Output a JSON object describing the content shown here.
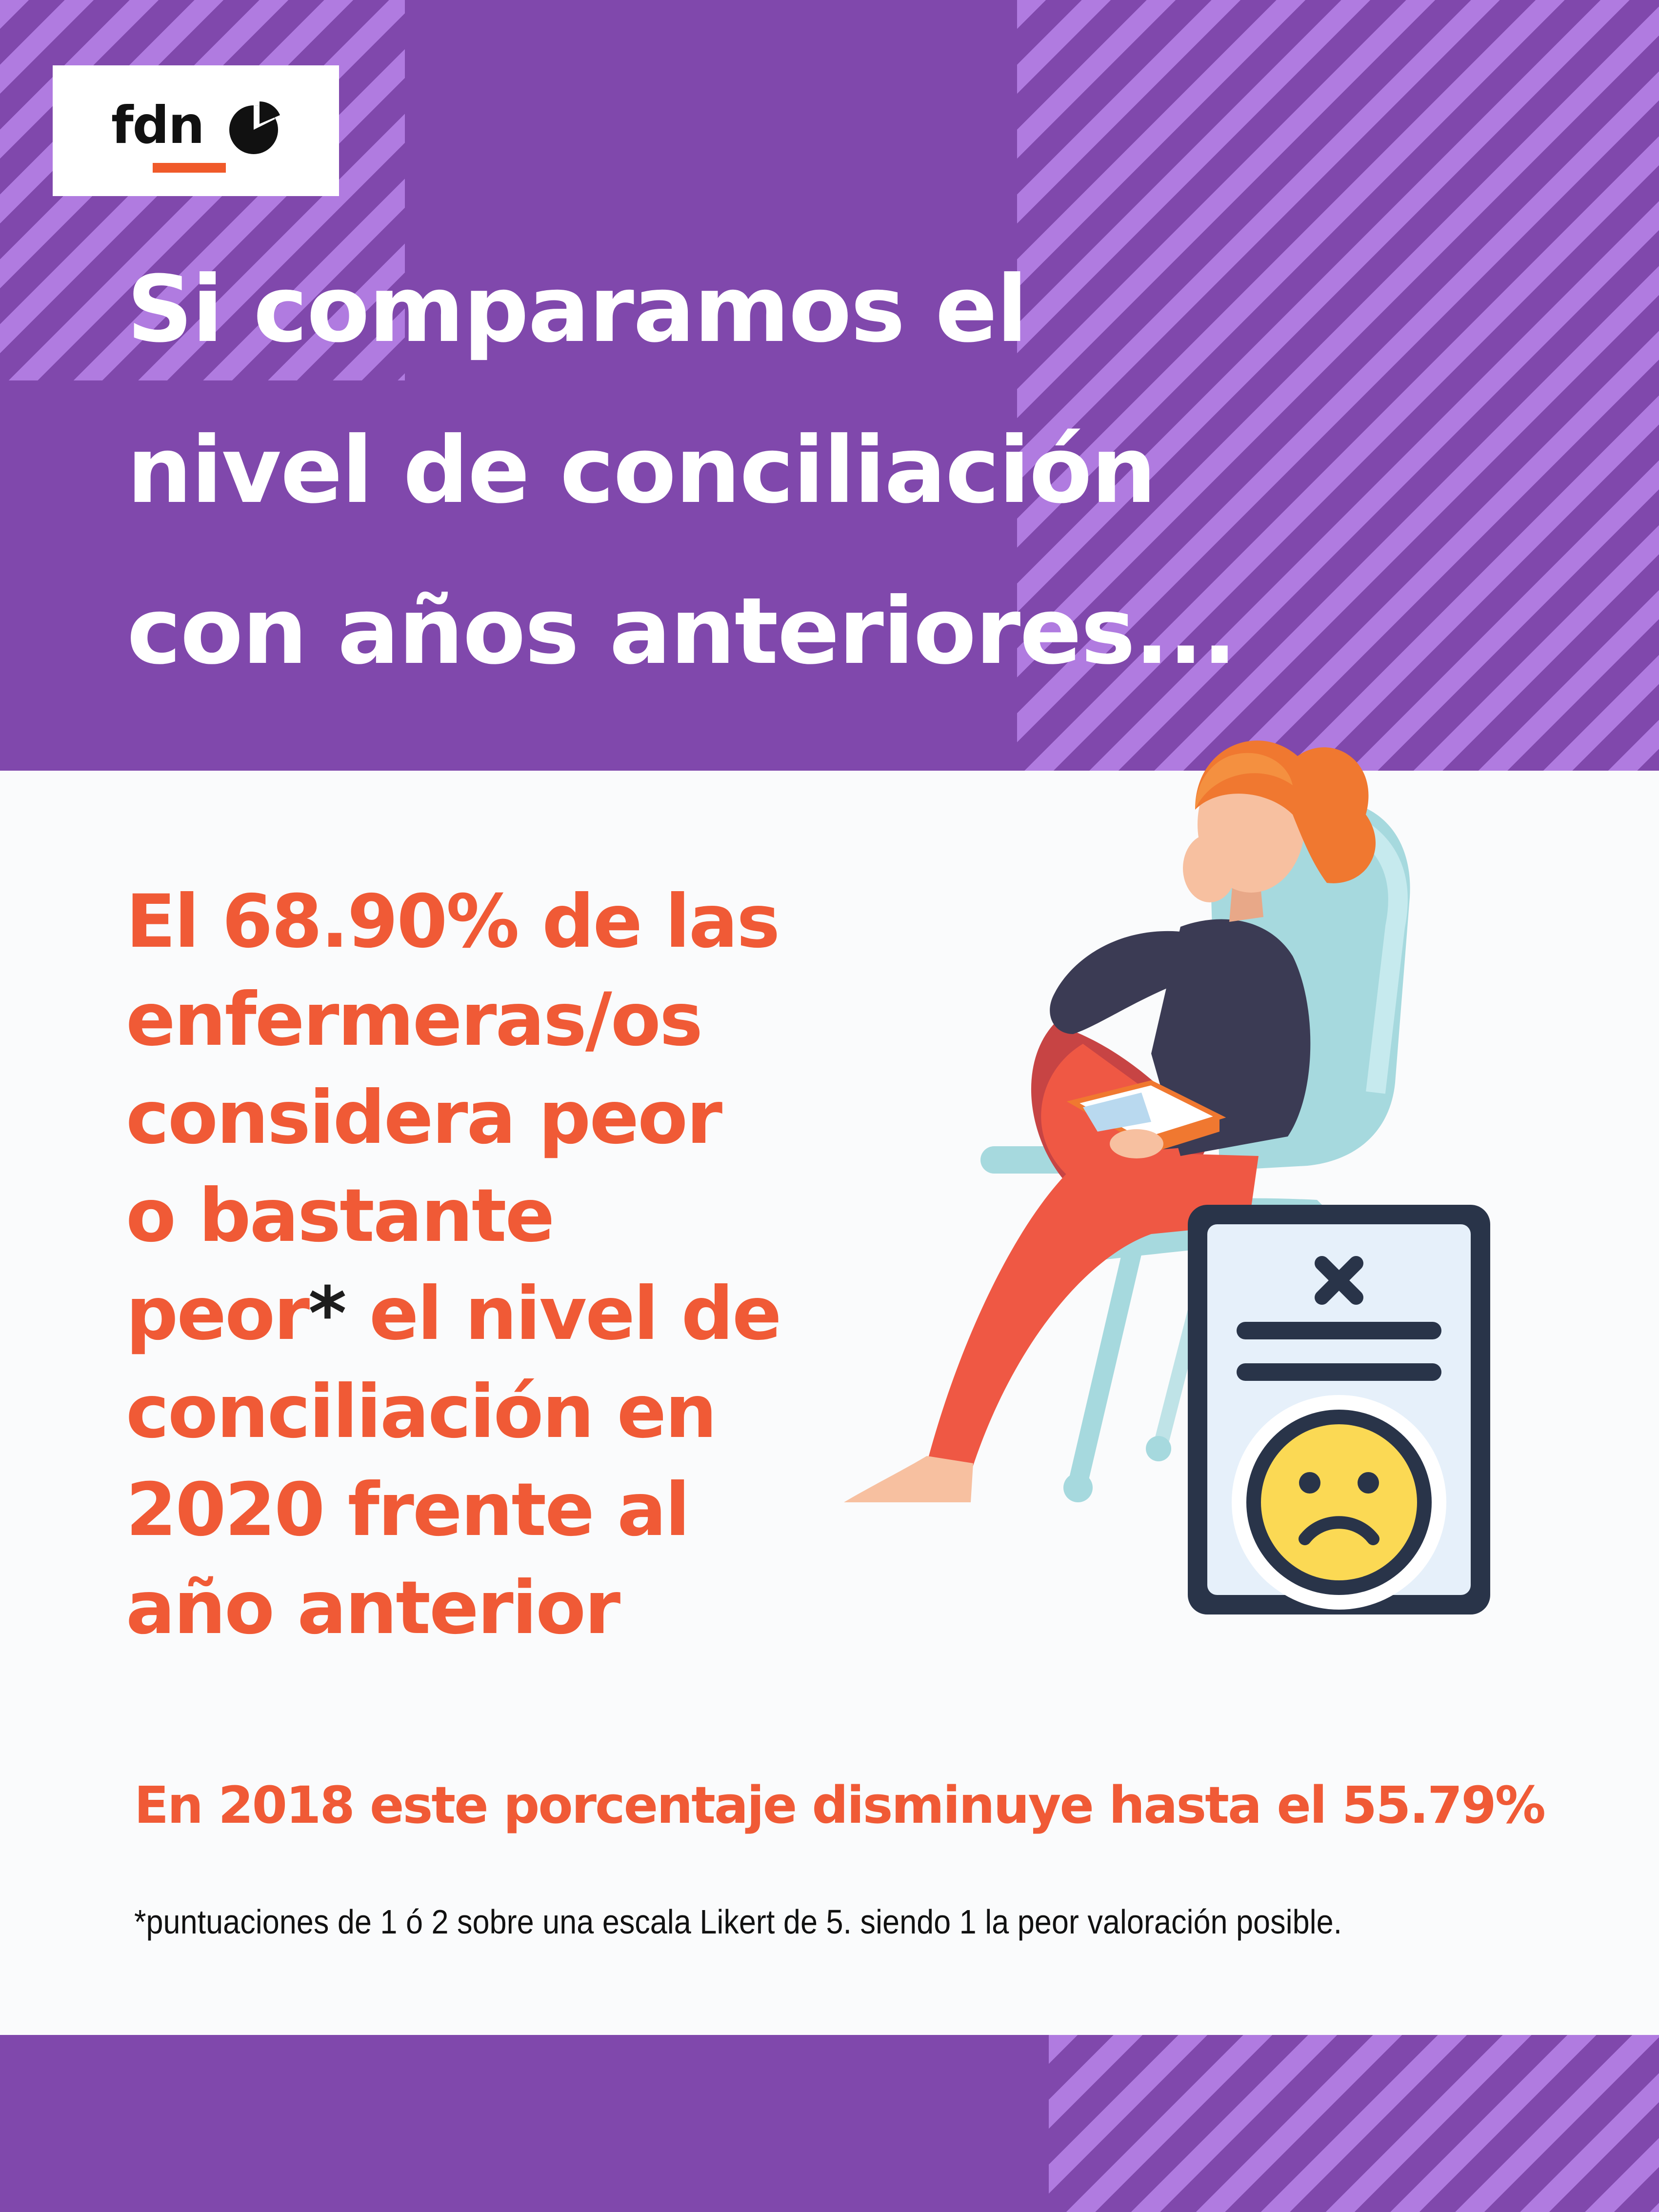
{
  "logo": {
    "text": "fdn"
  },
  "headline": {
    "lines": [
      "Si comparamos el",
      "nivel de conciliación",
      "con años anteriores..."
    ]
  },
  "main_statement": {
    "lines": [
      "El 68.90% de las",
      "enfermeras/os",
      "considera peor",
      "o bastante"
    ],
    "line5_start": "peor",
    "asterisk": "*",
    "line5_end": " el nivel de",
    "lines_after": [
      "conciliación en",
      "2020 frente al",
      "año anterior"
    ]
  },
  "comparison": {
    "text": "En 2018 este porcentaje disminuye hasta el 55.79%"
  },
  "footnote": {
    "text": "*puntuaciones de 1 ó 2 sobre una escala Likert de 5. siendo 1 la peor valoración posible."
  },
  "illustration": {
    "subject": "woman-reading-in-chair-icon",
    "document": "rejected-document-sad-face-icon"
  },
  "colors": {
    "purple": "#8048ac",
    "stripe": "#b07be0",
    "orange": "#f05a36",
    "white": "#ffffff"
  }
}
